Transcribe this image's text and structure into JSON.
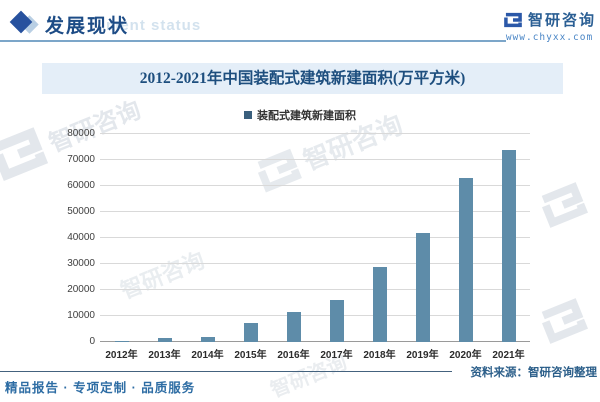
{
  "header": {
    "title": "发展现状",
    "watermark_en": "ment status"
  },
  "brand": {
    "name": "智研咨询",
    "website": "www.chyxx.com"
  },
  "chart_data": {
    "type": "bar",
    "title": "2012-2021年中国装配式建筑新建面积(万平方米)",
    "series_name": "装配式建筑新建面积",
    "categories": [
      "2012年",
      "2013年",
      "2014年",
      "2015年",
      "2016年",
      "2017年",
      "2018年",
      "2019年",
      "2020年",
      "2021年"
    ],
    "values": [
      500,
      1400,
      2000,
      7300,
      11400,
      16000,
      29000,
      41800,
      63000,
      74000
    ],
    "xlabel": "",
    "ylabel": "",
    "ylim": [
      0,
      80000
    ],
    "y_tick_step": 10000,
    "grid": true,
    "legend_position": "top",
    "bar_color": "#5e8ca9"
  },
  "footer": {
    "left": "精品报告 · 专项定制 · 品质服务",
    "source": "资料来源：智研咨询整理"
  },
  "colors": {
    "accent_navy": "#1d4c86",
    "banner_bg": "#e4eef8",
    "bar": "#5e8ca9",
    "grid": "#d9d9d9",
    "brand_blue": "#2b58a8",
    "footer_blue": "#2e6da4",
    "watermark_gray": "#e3e7ec"
  }
}
